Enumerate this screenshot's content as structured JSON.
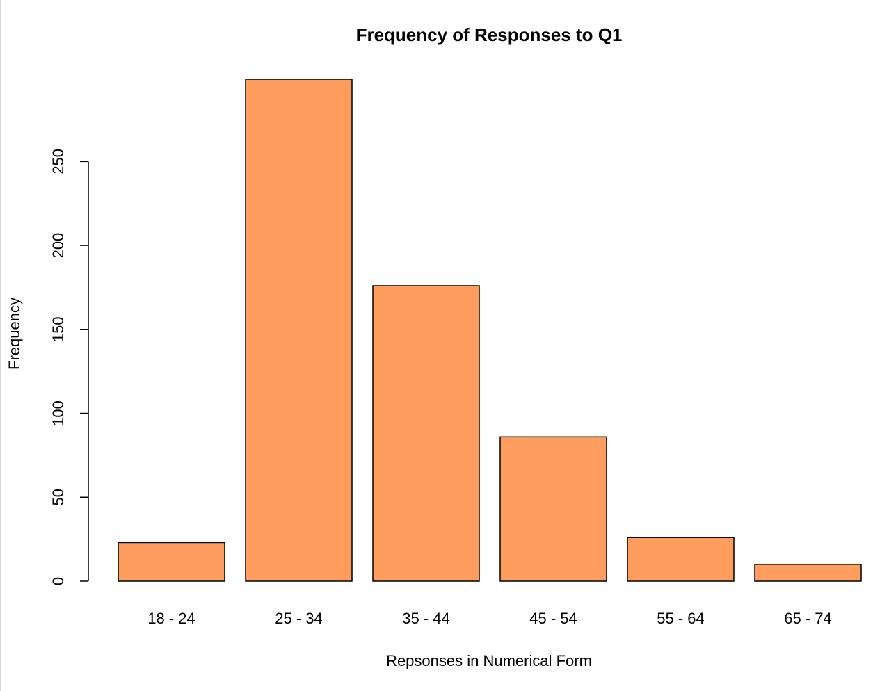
{
  "chart_data": {
    "type": "bar",
    "title": "Frequency of Responses to Q1",
    "x_label": "Repsonses in Numerical Form",
    "y_label": "Frequency",
    "categories": [
      "18 - 24",
      "25 - 34",
      "35 - 44",
      "45 - 54",
      "55 - 64",
      "65 - 74"
    ],
    "values": [
      23,
      299,
      176,
      86,
      26,
      10
    ],
    "color": "#fe9d5d",
    "ylim": [
      0,
      299
    ],
    "yticks": [
      0,
      50,
      100,
      150,
      200,
      250
    ],
    "grid": false
  }
}
